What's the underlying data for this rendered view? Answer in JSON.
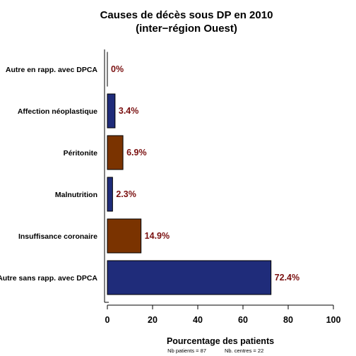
{
  "chart_data": {
    "type": "bar",
    "orientation": "horizontal",
    "title_line1": "Causes de décès sous DP en 2010",
    "title_line2": "(inter−région Ouest)",
    "categories": [
      "Autre en rapp. avec DPCA",
      "Affection néoplastique",
      "Péritonite",
      "Malnutrition",
      "Insuffisance coronaire",
      "Autre sans rapp. avec DPCA"
    ],
    "values": [
      0,
      3.4,
      6.9,
      2.3,
      14.9,
      72.4
    ],
    "value_labels": [
      "0%",
      "3.4%",
      "6.9%",
      "2.3%",
      "14.9%",
      "72.4%"
    ],
    "bar_colors": [
      "#1f2c7a",
      "#1f2c7a",
      "#7a3300",
      "#1f2c7a",
      "#7a3300",
      "#1f2c7a"
    ],
    "value_label_color": "#7a1010",
    "xlabel": "Pourcentage des patients",
    "xlim": [
      0,
      100
    ],
    "xticks": [
      "0",
      "20",
      "40",
      "60",
      "80",
      "100"
    ],
    "grid": false,
    "legend": "none"
  },
  "footnote": {
    "patients_label": "Nb patients =  87",
    "centres_label": "Nb. centres =  22"
  }
}
